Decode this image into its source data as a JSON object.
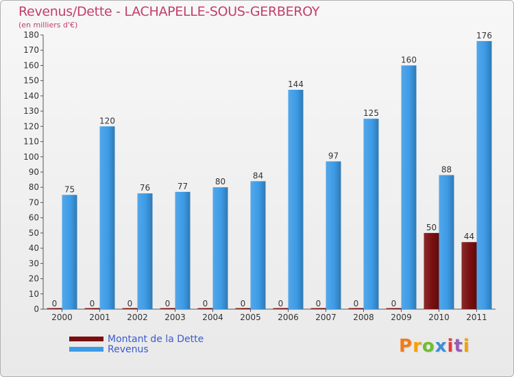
{
  "colors": {
    "dette": "#7a0f10",
    "revenus": "#3d9be6",
    "title": "#c23e6b",
    "legend_text": "#3b5bcc",
    "logo": [
      "#f07c1a",
      "#f2a10a",
      "#6cbf2e",
      "#3b8fd8",
      "#e53b3b",
      "#9b59b6",
      "#f2a10a"
    ]
  },
  "logo_text": "Proxiti",
  "chart_data": {
    "type": "bar",
    "title": "Revenus/Dette - LACHAPELLE-SOUS-GERBEROY",
    "subtitle": "(en milliers d'€)",
    "xlabel": "",
    "ylabel": "",
    "categories": [
      "2000",
      "2001",
      "2002",
      "2003",
      "2004",
      "2005",
      "2006",
      "2007",
      "2008",
      "2009",
      "2010",
      "2011"
    ],
    "series": [
      {
        "name": "Montant de la Dette",
        "values": [
          0,
          0,
          0,
          0,
          0,
          0,
          0,
          0,
          0,
          0,
          50,
          44
        ]
      },
      {
        "name": "Revenus",
        "values": [
          75,
          120,
          76,
          77,
          80,
          84,
          144,
          97,
          125,
          160,
          88,
          176
        ]
      }
    ],
    "ylim": [
      0,
      180
    ],
    "ytick_step": 10,
    "grid": false,
    "legend_position": "bottom-left"
  }
}
